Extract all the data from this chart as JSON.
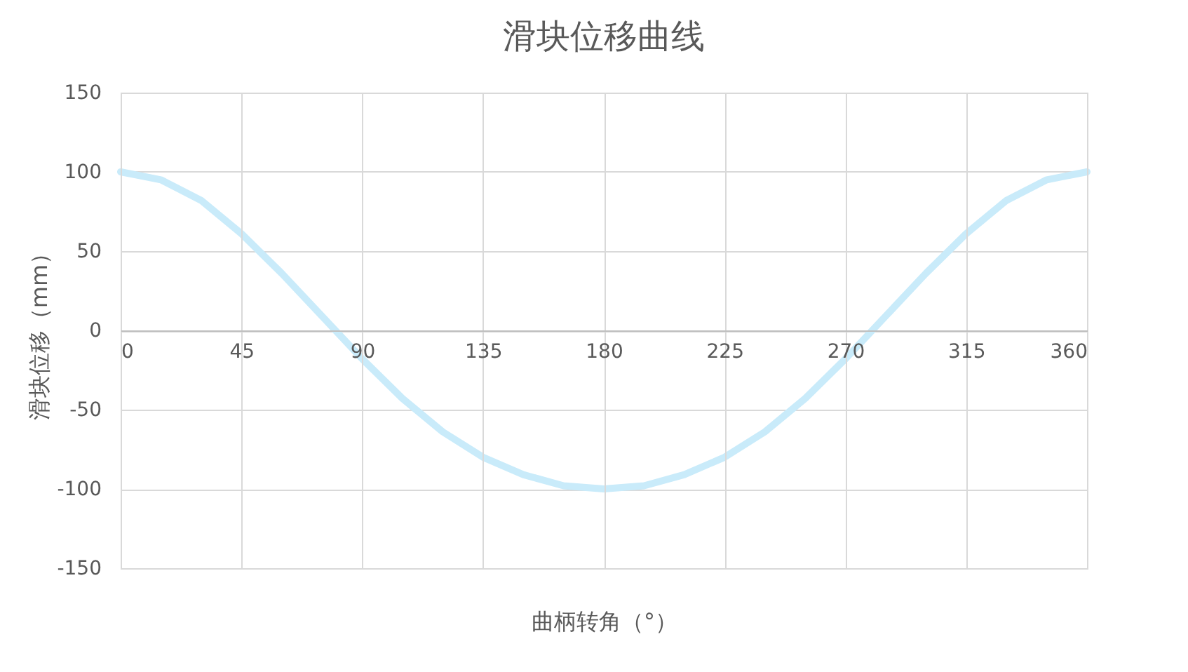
{
  "chart_data": {
    "type": "line",
    "title": "滑块位移曲线",
    "xlabel": "曲柄转角（°）",
    "ylabel": "滑块位移（mm）",
    "x": [
      0,
      15,
      30,
      45,
      60,
      75,
      90,
      105,
      120,
      135,
      150,
      165,
      180,
      195,
      210,
      225,
      240,
      255,
      270,
      285,
      300,
      315,
      330,
      345,
      360
    ],
    "series": [
      {
        "color": "#c9ebfa",
        "values": [
          100,
          95,
          82,
          61,
          36,
          9,
          -18,
          -43,
          -64,
          -80,
          -91,
          -98,
          -100,
          -98,
          -91,
          -80,
          -64,
          -43,
          -18,
          9,
          36,
          61,
          82,
          95,
          100
        ]
      }
    ],
    "xlim": [
      0,
      360
    ],
    "xticks": [
      0,
      45,
      90,
      135,
      180,
      225,
      270,
      315,
      360
    ],
    "ylim": [
      -150,
      150
    ],
    "yticks": [
      -150,
      -100,
      -50,
      0,
      50,
      100,
      150
    ],
    "grid": true,
    "marker": "none",
    "line_style": "solid"
  }
}
